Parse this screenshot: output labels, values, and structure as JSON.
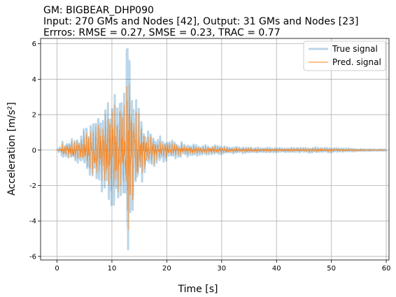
{
  "chart_data": {
    "type": "line",
    "title_lines": [
      "GM: BIGBEAR_DHP090",
      "Input: 270 GMs and Nodes [42], Output: 31 GMs and Nodes [23]",
      "Errros: RMSE = 0.27, SMSE = 0.23, TRAC = 0.77"
    ],
    "xlabel": "Time [s]",
    "ylabel": "Acceleration [m/s²]",
    "xlim": [
      -3,
      60.5
    ],
    "ylim": [
      -6.2,
      6.3
    ],
    "xticks": [
      0,
      10,
      20,
      30,
      40,
      50,
      60
    ],
    "yticks": [
      -6,
      -4,
      -2,
      0,
      2,
      4,
      6
    ],
    "grid": true,
    "legend_position": "top-right",
    "envelope_time": [
      0,
      0.5,
      1,
      2,
      3,
      4,
      5,
      6,
      7,
      7.5,
      8,
      9,
      10,
      11,
      12,
      12.5,
      13,
      13.5,
      14,
      15,
      16,
      17,
      18,
      20,
      22,
      25,
      28,
      30,
      35,
      40,
      45,
      47,
      50,
      55,
      60
    ],
    "envelope_true": [
      0.05,
      0.15,
      0.4,
      0.4,
      0.45,
      0.55,
      0.9,
      1.2,
      1.4,
      1.7,
      2.0,
      2.3,
      2.4,
      2.6,
      3.0,
      3.2,
      5.7,
      3.0,
      2.6,
      1.6,
      1.1,
      0.8,
      0.6,
      0.45,
      0.35,
      0.25,
      0.2,
      0.18,
      0.12,
      0.1,
      0.1,
      0.12,
      0.1,
      0.05,
      0.03
    ],
    "envelope_pred": [
      0.02,
      0.1,
      0.3,
      0.35,
      0.4,
      0.5,
      0.8,
      1.05,
      1.2,
      1.4,
      1.6,
      1.9,
      2.1,
      2.3,
      2.5,
      2.7,
      4.5,
      2.6,
      2.3,
      1.4,
      0.95,
      0.7,
      0.5,
      0.38,
      0.3,
      0.2,
      0.17,
      0.15,
      0.1,
      0.08,
      0.08,
      0.1,
      0.08,
      0.04,
      0.02
    ],
    "series": [
      {
        "name": "True signal",
        "color": "#1f77b4",
        "opacity": 0.3,
        "linewidth": 3
      },
      {
        "name": "Pred. signal",
        "color": "#ff7f0e",
        "opacity": 0.85,
        "linewidth": 0.8
      }
    ]
  }
}
